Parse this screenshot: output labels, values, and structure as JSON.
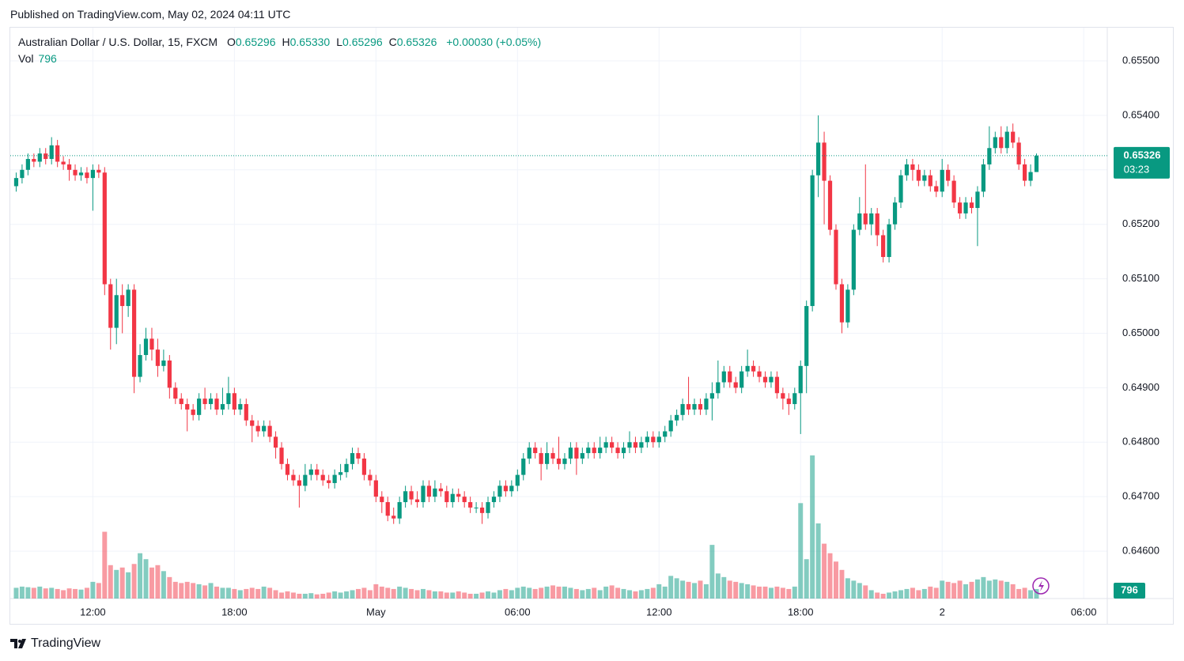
{
  "header": {
    "title": "Published on TradingView.com, May 02, 2024 04:11 UTC"
  },
  "footer": {
    "brand": "TradingView"
  },
  "chart_data": {
    "type": "candlestick",
    "legend": {
      "symbol": "Australian Dollar / U.S. Dollar, 15, FXCM",
      "fields": [
        {
          "key": "O",
          "text": "0.65296"
        },
        {
          "key": "H",
          "text": "0.65330"
        },
        {
          "key": "L",
          "text": "0.65296"
        },
        {
          "key": "C",
          "text": "0.65326"
        }
      ],
      "change": "+0.00030 (+0.05%)",
      "volume_key": "Vol"
    },
    "countdown": "03:23",
    "up_color": "#089981",
    "down_color": "#f23645",
    "grid": true,
    "xlim": [
      -1,
      185
    ],
    "xticks": [
      {
        "value": 13,
        "label": "12:00"
      },
      {
        "value": 37,
        "label": "18:00"
      },
      {
        "value": 61,
        "label": "May"
      },
      {
        "value": 85,
        "label": "06:00"
      },
      {
        "value": 109,
        "label": "12:00"
      },
      {
        "value": 133,
        "label": "18:00"
      },
      {
        "value": 157,
        "label": "2"
      },
      {
        "value": 181,
        "label": "06:00"
      }
    ],
    "ylim": [
      0.64513,
      0.65561
    ],
    "yticks": [
      {
        "value": 0.646,
        "label": "0.64600"
      },
      {
        "value": 0.647,
        "label": "0.64700"
      },
      {
        "value": 0.648,
        "label": "0.64800"
      },
      {
        "value": 0.649,
        "label": "0.64900"
      },
      {
        "value": 0.65,
        "label": "0.65000"
      },
      {
        "value": 0.651,
        "label": "0.65100"
      },
      {
        "value": 0.652,
        "label": "0.65200"
      },
      {
        "value": 0.653,
        "label": "0.65300"
      },
      {
        "value": 0.654,
        "label": "0.65400"
      },
      {
        "value": 0.655,
        "label": "0.65500"
      }
    ],
    "open": [
      0.6527,
      0.65285,
      0.653,
      0.6532,
      0.65315,
      0.6533,
      0.6532,
      0.65345,
      0.65315,
      0.6531,
      0.653,
      0.6529,
      0.65295,
      0.65285,
      0.653,
      0.65295,
      0.6509,
      0.6501,
      0.6507,
      0.6505,
      0.6508,
      0.6492,
      0.6496,
      0.6499,
      0.6497,
      0.6494,
      0.6495,
      0.649,
      0.6488,
      0.6487,
      0.6486,
      0.6485,
      0.6488,
      0.6487,
      0.6488,
      0.6486,
      0.6487,
      0.6489,
      0.6486,
      0.6487,
      0.6484,
      0.6483,
      0.6482,
      0.6483,
      0.6481,
      0.6479,
      0.6476,
      0.6474,
      0.6473,
      0.6472,
      0.6474,
      0.6475,
      0.6474,
      0.6473,
      0.64725,
      0.6474,
      0.64745,
      0.6476,
      0.6478,
      0.6477,
      0.6474,
      0.6473,
      0.647,
      0.6469,
      0.64665,
      0.6466,
      0.6469,
      0.6471,
      0.64695,
      0.6469,
      0.6472,
      0.647,
      0.64715,
      0.6471,
      0.6469,
      0.64705,
      0.647,
      0.6469,
      0.6468,
      0.6468,
      0.6467,
      0.6469,
      0.647,
      0.6472,
      0.6471,
      0.6472,
      0.6474,
      0.6477,
      0.6479,
      0.6478,
      0.6476,
      0.6478,
      0.6477,
      0.6476,
      0.6477,
      0.6479,
      0.6477,
      0.6478,
      0.6479,
      0.6478,
      0.6479,
      0.648,
      0.6479,
      0.6478,
      0.6479,
      0.648,
      0.6479,
      0.648,
      0.6481,
      0.648,
      0.6481,
      0.6482,
      0.6484,
      0.6485,
      0.6487,
      0.6486,
      0.6487,
      0.6486,
      0.6488,
      0.6489,
      0.6491,
      0.6493,
      0.6491,
      0.649,
      0.6493,
      0.6494,
      0.6493,
      0.6492,
      0.6491,
      0.6492,
      0.6489,
      0.6488,
      0.6487,
      0.6489,
      0.6494,
      0.6505,
      0.6529,
      0.6535,
      0.6528,
      0.6519,
      0.6509,
      0.6502,
      0.6508,
      0.6519,
      0.6522,
      0.652,
      0.6522,
      0.6518,
      0.6514,
      0.652,
      0.6524,
      0.6529,
      0.6531,
      0.653,
      0.6528,
      0.6529,
      0.6527,
      0.6526,
      0.653,
      0.6528,
      0.6524,
      0.6522,
      0.6524,
      0.6523,
      0.6526,
      0.6531,
      0.6534,
      0.6536,
      0.6534,
      0.6537,
      0.6535,
      0.6531,
      0.6528,
      0.65296
    ],
    "high": [
      0.65295,
      0.6531,
      0.6533,
      0.6533,
      0.6534,
      0.6534,
      0.6536,
      0.65355,
      0.65325,
      0.6532,
      0.6531,
      0.65305,
      0.65305,
      0.6531,
      0.6531,
      0.65305,
      0.651,
      0.651,
      0.6509,
      0.6509,
      0.6509,
      0.6498,
      0.6501,
      0.6501,
      0.6499,
      0.6497,
      0.6496,
      0.6491,
      0.6489,
      0.6488,
      0.6487,
      0.6489,
      0.649,
      0.6489,
      0.6489,
      0.649,
      0.6492,
      0.649,
      0.6488,
      0.6488,
      0.6485,
      0.6484,
      0.6484,
      0.6484,
      0.6482,
      0.648,
      0.6477,
      0.6475,
      0.6474,
      0.6476,
      0.6476,
      0.6476,
      0.6475,
      0.6474,
      0.6475,
      0.6476,
      0.6477,
      0.6479,
      0.6479,
      0.6478,
      0.6475,
      0.6474,
      0.6471,
      0.647,
      0.6468,
      0.647,
      0.6472,
      0.6472,
      0.6471,
      0.6473,
      0.6473,
      0.6473,
      0.64725,
      0.6472,
      0.64715,
      0.64715,
      0.6471,
      0.647,
      0.6469,
      0.6469,
      0.647,
      0.6471,
      0.6473,
      0.6473,
      0.6473,
      0.6475,
      0.6478,
      0.648,
      0.648,
      0.6479,
      0.648,
      0.6479,
      0.6481,
      0.6478,
      0.648,
      0.648,
      0.6479,
      0.648,
      0.648,
      0.6481,
      0.6481,
      0.6481,
      0.648,
      0.648,
      0.6482,
      0.6481,
      0.6481,
      0.6482,
      0.6482,
      0.6482,
      0.6483,
      0.6485,
      0.6486,
      0.6488,
      0.6492,
      0.6488,
      0.6488,
      0.6489,
      0.6491,
      0.6495,
      0.6494,
      0.6494,
      0.6492,
      0.6494,
      0.6497,
      0.6495,
      0.6494,
      0.6493,
      0.6493,
      0.6493,
      0.649,
      0.6489,
      0.649,
      0.6495,
      0.6506,
      0.653,
      0.654,
      0.6537,
      0.6529,
      0.652,
      0.651,
      0.6509,
      0.652,
      0.6525,
      0.6531,
      0.6523,
      0.6523,
      0.6519,
      0.6521,
      0.6525,
      0.653,
      0.6532,
      0.6532,
      0.6531,
      0.653,
      0.653,
      0.6528,
      0.6532,
      0.6531,
      0.6529,
      0.6525,
      0.6525,
      0.6525,
      0.6527,
      0.6532,
      0.6538,
      0.6537,
      0.6538,
      0.6538,
      0.65385,
      0.6536,
      0.6532,
      0.6531,
      0.6533
    ],
    "low": [
      0.6526,
      0.65275,
      0.6529,
      0.65305,
      0.65305,
      0.6531,
      0.6531,
      0.65305,
      0.653,
      0.6528,
      0.6528,
      0.6528,
      0.65275,
      0.65225,
      0.65285,
      0.6507,
      0.6497,
      0.6498,
      0.65,
      0.6503,
      0.6489,
      0.6491,
      0.6495,
      0.6495,
      0.6492,
      0.6493,
      0.6488,
      0.6487,
      0.6486,
      0.6482,
      0.6484,
      0.6484,
      0.6486,
      0.6486,
      0.6485,
      0.6485,
      0.6486,
      0.6485,
      0.6485,
      0.6483,
      0.648,
      0.6481,
      0.6481,
      0.648,
      0.6477,
      0.6475,
      0.6473,
      0.6472,
      0.6468,
      0.6471,
      0.6473,
      0.6473,
      0.6472,
      0.64715,
      0.64715,
      0.6473,
      0.64735,
      0.6475,
      0.6476,
      0.6473,
      0.6472,
      0.6469,
      0.6467,
      0.64655,
      0.6465,
      0.6465,
      0.6468,
      0.64685,
      0.6468,
      0.6468,
      0.6469,
      0.6469,
      0.647,
      0.6468,
      0.6468,
      0.6469,
      0.6468,
      0.6467,
      0.6467,
      0.6465,
      0.6466,
      0.6468,
      0.6469,
      0.647,
      0.647,
      0.6471,
      0.6473,
      0.6476,
      0.6477,
      0.6473,
      0.6475,
      0.6476,
      0.6475,
      0.6475,
      0.6476,
      0.6474,
      0.6476,
      0.6477,
      0.6477,
      0.6477,
      0.6478,
      0.6478,
      0.6477,
      0.6477,
      0.6478,
      0.6478,
      0.6478,
      0.6479,
      0.6479,
      0.6479,
      0.648,
      0.6481,
      0.6483,
      0.6484,
      0.6485,
      0.6485,
      0.6485,
      0.6485,
      0.6484,
      0.6488,
      0.649,
      0.649,
      0.6489,
      0.6489,
      0.6492,
      0.6492,
      0.6491,
      0.649,
      0.649,
      0.6488,
      0.6486,
      0.6485,
      0.6486,
      0.64815,
      0.6489,
      0.6504,
      0.6525,
      0.652,
      0.6518,
      0.6508,
      0.65,
      0.6501,
      0.6507,
      0.6518,
      0.6519,
      0.6518,
      0.6516,
      0.6513,
      0.6513,
      0.6519,
      0.6523,
      0.6528,
      0.6528,
      0.6527,
      0.6527,
      0.6526,
      0.6525,
      0.6525,
      0.6527,
      0.6523,
      0.6521,
      0.6521,
      0.6522,
      0.6516,
      0.6525,
      0.653,
      0.6533,
      0.6533,
      0.6533,
      0.6534,
      0.653,
      0.6527,
      0.6527,
      0.65296
    ],
    "close": [
      0.65285,
      0.653,
      0.6532,
      0.65315,
      0.6533,
      0.6532,
      0.65345,
      0.65315,
      0.6531,
      0.653,
      0.6529,
      0.65295,
      0.65285,
      0.653,
      0.65295,
      0.6509,
      0.6501,
      0.6507,
      0.6505,
      0.6508,
      0.6492,
      0.6496,
      0.6499,
      0.6497,
      0.6494,
      0.6495,
      0.649,
      0.6488,
      0.6487,
      0.6486,
      0.6485,
      0.6488,
      0.6487,
      0.6488,
      0.6486,
      0.6487,
      0.6489,
      0.6486,
      0.6487,
      0.6484,
      0.6483,
      0.6482,
      0.6483,
      0.6481,
      0.6479,
      0.6476,
      0.6474,
      0.6473,
      0.6472,
      0.6474,
      0.6475,
      0.6474,
      0.6473,
      0.64725,
      0.6474,
      0.64745,
      0.6476,
      0.6478,
      0.6477,
      0.6474,
      0.6473,
      0.647,
      0.6469,
      0.64665,
      0.6466,
      0.6469,
      0.6471,
      0.64695,
      0.6469,
      0.6472,
      0.647,
      0.64715,
      0.6471,
      0.6469,
      0.64705,
      0.647,
      0.6469,
      0.6468,
      0.6468,
      0.6467,
      0.6469,
      0.647,
      0.6472,
      0.6471,
      0.6472,
      0.6474,
      0.6477,
      0.6479,
      0.6478,
      0.6476,
      0.6478,
      0.6477,
      0.6476,
      0.6477,
      0.6479,
      0.6477,
      0.6478,
      0.6479,
      0.6478,
      0.6479,
      0.648,
      0.6479,
      0.6478,
      0.6479,
      0.648,
      0.6479,
      0.648,
      0.6481,
      0.648,
      0.6481,
      0.6482,
      0.6484,
      0.6485,
      0.6487,
      0.6486,
      0.6487,
      0.6486,
      0.6488,
      0.6489,
      0.6491,
      0.6493,
      0.6491,
      0.649,
      0.6493,
      0.6494,
      0.6493,
      0.6492,
      0.6491,
      0.6492,
      0.6489,
      0.6488,
      0.6487,
      0.6489,
      0.6494,
      0.6505,
      0.6529,
      0.6535,
      0.6528,
      0.6519,
      0.6509,
      0.6502,
      0.6508,
      0.6519,
      0.6522,
      0.652,
      0.6522,
      0.6518,
      0.6514,
      0.652,
      0.6524,
      0.6529,
      0.6531,
      0.653,
      0.6528,
      0.6529,
      0.6527,
      0.6526,
      0.653,
      0.6528,
      0.6524,
      0.6522,
      0.6524,
      0.6523,
      0.6526,
      0.6531,
      0.6534,
      0.6536,
      0.6534,
      0.6537,
      0.6535,
      0.6531,
      0.6528,
      0.65296,
      0.65326
    ],
    "volume": [
      900,
      1000,
      950,
      900,
      1000,
      850,
      900,
      800,
      700,
      850,
      800,
      750,
      900,
      1400,
      1300,
      5600,
      2800,
      2400,
      2600,
      2200,
      2900,
      3800,
      3300,
      2600,
      2800,
      2300,
      1800,
      1400,
      1300,
      1400,
      1300,
      1200,
      1100,
      1300,
      1000,
      900,
      900,
      800,
      700,
      800,
      900,
      800,
      1000,
      900,
      700,
      500,
      600,
      500,
      400,
      400,
      450,
      350,
      400,
      500,
      600,
      500,
      600,
      700,
      800,
      900,
      700,
      1200,
      1000,
      900,
      800,
      1000,
      900,
      800,
      700,
      800,
      700,
      600,
      600,
      500,
      500,
      600,
      500,
      400,
      400,
      500,
      600,
      500,
      700,
      800,
      700,
      900,
      1000,
      900,
      800,
      900,
      1000,
      1100,
      1000,
      1000,
      900,
      800,
      700,
      800,
      900,
      700,
      1000,
      1100,
      900,
      800,
      700,
      600,
      700,
      800,
      900,
      1200,
      1000,
      1900,
      1700,
      1500,
      1400,
      1300,
      1500,
      1200,
      4500,
      2100,
      1800,
      1500,
      1400,
      1300,
      1200,
      1100,
      1000,
      1000,
      900,
      1000,
      900,
      800,
      1000,
      8000,
      3300,
      12000,
      6300,
      4600,
      3800,
      3100,
      2400,
      1700,
      1500,
      1300,
      1100,
      700,
      500,
      400,
      500,
      600,
      700,
      800,
      900,
      700,
      800,
      1000,
      900,
      1500,
      1400,
      1300,
      1500,
      1200,
      1400,
      1600,
      1800,
      1500,
      1600,
      1500,
      1400,
      1200,
      800,
      900,
      700,
      796
    ]
  }
}
